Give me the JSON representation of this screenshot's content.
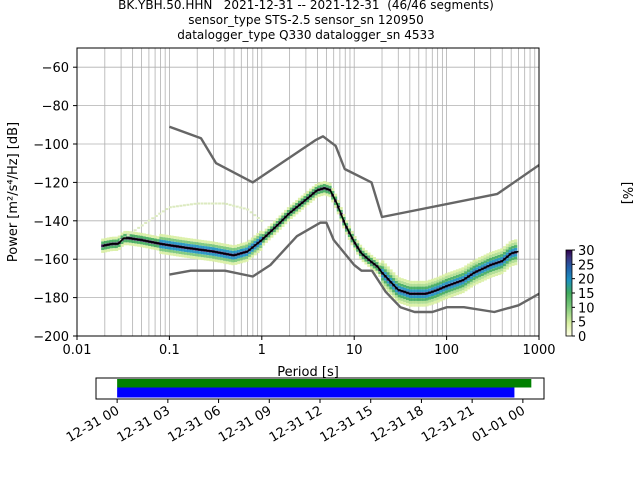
{
  "header": {
    "title_line1": "BK.YBH.50.HHN   2021-12-31 -- 2021-12-31  (46/46 segments)",
    "title_line2": "sensor_type STS-2.5 sensor_sn 120950",
    "title_line3": "datalogger_type Q330 datalogger_sn 4533"
  },
  "chart_data": [
    {
      "type": "line",
      "subtype": "probabilistic-power-spectral-density",
      "xlabel": "Period [s]",
      "ylabel": "Power [m²/s⁴/Hz] [dB]",
      "xscale": "log",
      "xlim": [
        0.01,
        1000
      ],
      "ylim": [
        -200,
        -50
      ],
      "xticks": [
        0.01,
        0.1,
        1,
        10,
        100,
        1000
      ],
      "xtick_labels": [
        "0.01",
        "0.1",
        "1",
        "10",
        "100",
        "1000"
      ],
      "yticks": [
        -200,
        -180,
        -160,
        -140,
        -120,
        -100,
        -80,
        -60
      ],
      "ytick_labels": [
        "−200",
        "−180",
        "−160",
        "−140",
        "−120",
        "−100",
        "−80",
        "−60"
      ],
      "grid": true,
      "colors": {
        "noise_model": "#666666",
        "mean": "#000000",
        "faint": "#dceac0"
      },
      "series": [
        {
          "role": "new-high-noise-model",
          "x": [
            0.1,
            0.22,
            0.32,
            0.8,
            3.8,
            4.6,
            6.3,
            7.9,
            15.4,
            20,
            354.8,
            1000
          ],
          "y": [
            -91,
            -97,
            -110,
            -120,
            -98,
            -96,
            -101,
            -113,
            -120,
            -138,
            -126,
            -111
          ]
        },
        {
          "role": "new-low-noise-model",
          "x": [
            0.1,
            0.17,
            0.4,
            0.8,
            1.24,
            2.4,
            4.3,
            5.0,
            6.0,
            10,
            12,
            15.6,
            21.9,
            31.6,
            45,
            70,
            101,
            154,
            328,
            600,
            1000
          ],
          "y": [
            -168,
            -166,
            -166,
            -169,
            -163,
            -148,
            -141,
            -141,
            -150,
            -163,
            -166,
            -166,
            -177,
            -185,
            -187.5,
            -187.5,
            -185,
            -185,
            -187.5,
            -184,
            -178
          ]
        },
        {
          "role": "mean",
          "x": [
            0.019,
            0.024,
            0.028,
            0.032,
            0.036,
            0.05,
            0.08,
            0.15,
            0.3,
            0.5,
            0.7,
            1.0,
            1.5,
            2.0,
            3.0,
            4.0,
            4.8,
            5.5,
            6.5,
            8,
            10,
            12,
            15,
            18,
            20,
            25,
            30,
            35,
            40,
            50,
            60,
            70,
            80,
            100,
            150,
            200,
            300,
            400,
            500,
            600
          ],
          "y": [
            -153,
            -152,
            -152,
            -149,
            -149,
            -150,
            -152,
            -154,
            -156,
            -158,
            -156,
            -150,
            -142,
            -136,
            -129,
            -124,
            -123,
            -124,
            -131,
            -142,
            -151,
            -157,
            -161,
            -164,
            -167,
            -172,
            -176,
            -177,
            -178,
            -178,
            -178,
            -177,
            -176,
            -174,
            -171,
            -167,
            -163,
            -161,
            -157,
            -156
          ]
        },
        {
          "role": "faint-low-probability-envelope",
          "x": [
            0.03,
            0.06,
            0.1,
            0.2,
            0.4,
            0.7,
            1.0
          ],
          "y": [
            -150,
            -140,
            -133,
            -131,
            -131,
            -134,
            -140
          ]
        }
      ],
      "colorbar": {
        "label": "[%]",
        "ticks": [
          0,
          5,
          10,
          15,
          20,
          25,
          30
        ],
        "tick_labels": [
          "0",
          "5",
          "10",
          "15",
          "20",
          "25",
          "30"
        ],
        "range": [
          0,
          30
        ]
      }
    },
    {
      "type": "timeline",
      "xtick_labels": [
        "12-31 00",
        "12-31 03",
        "12-31 06",
        "12-31 09",
        "12-31 12",
        "12-31 15",
        "12-31 18",
        "12-31 21",
        "01-01 00"
      ],
      "xtick_hours": [
        0,
        3,
        6,
        9,
        12,
        15,
        18,
        21,
        24
      ],
      "xlim_hours": [
        -1.25,
        25.25
      ],
      "bars": [
        {
          "role": "data-available",
          "color": "#008000",
          "start_hour": 0,
          "end_hour": 24.5
        },
        {
          "role": "segments-used",
          "color": "#0000ff",
          "start_hour": 0,
          "end_hour": 23.5
        }
      ]
    }
  ]
}
